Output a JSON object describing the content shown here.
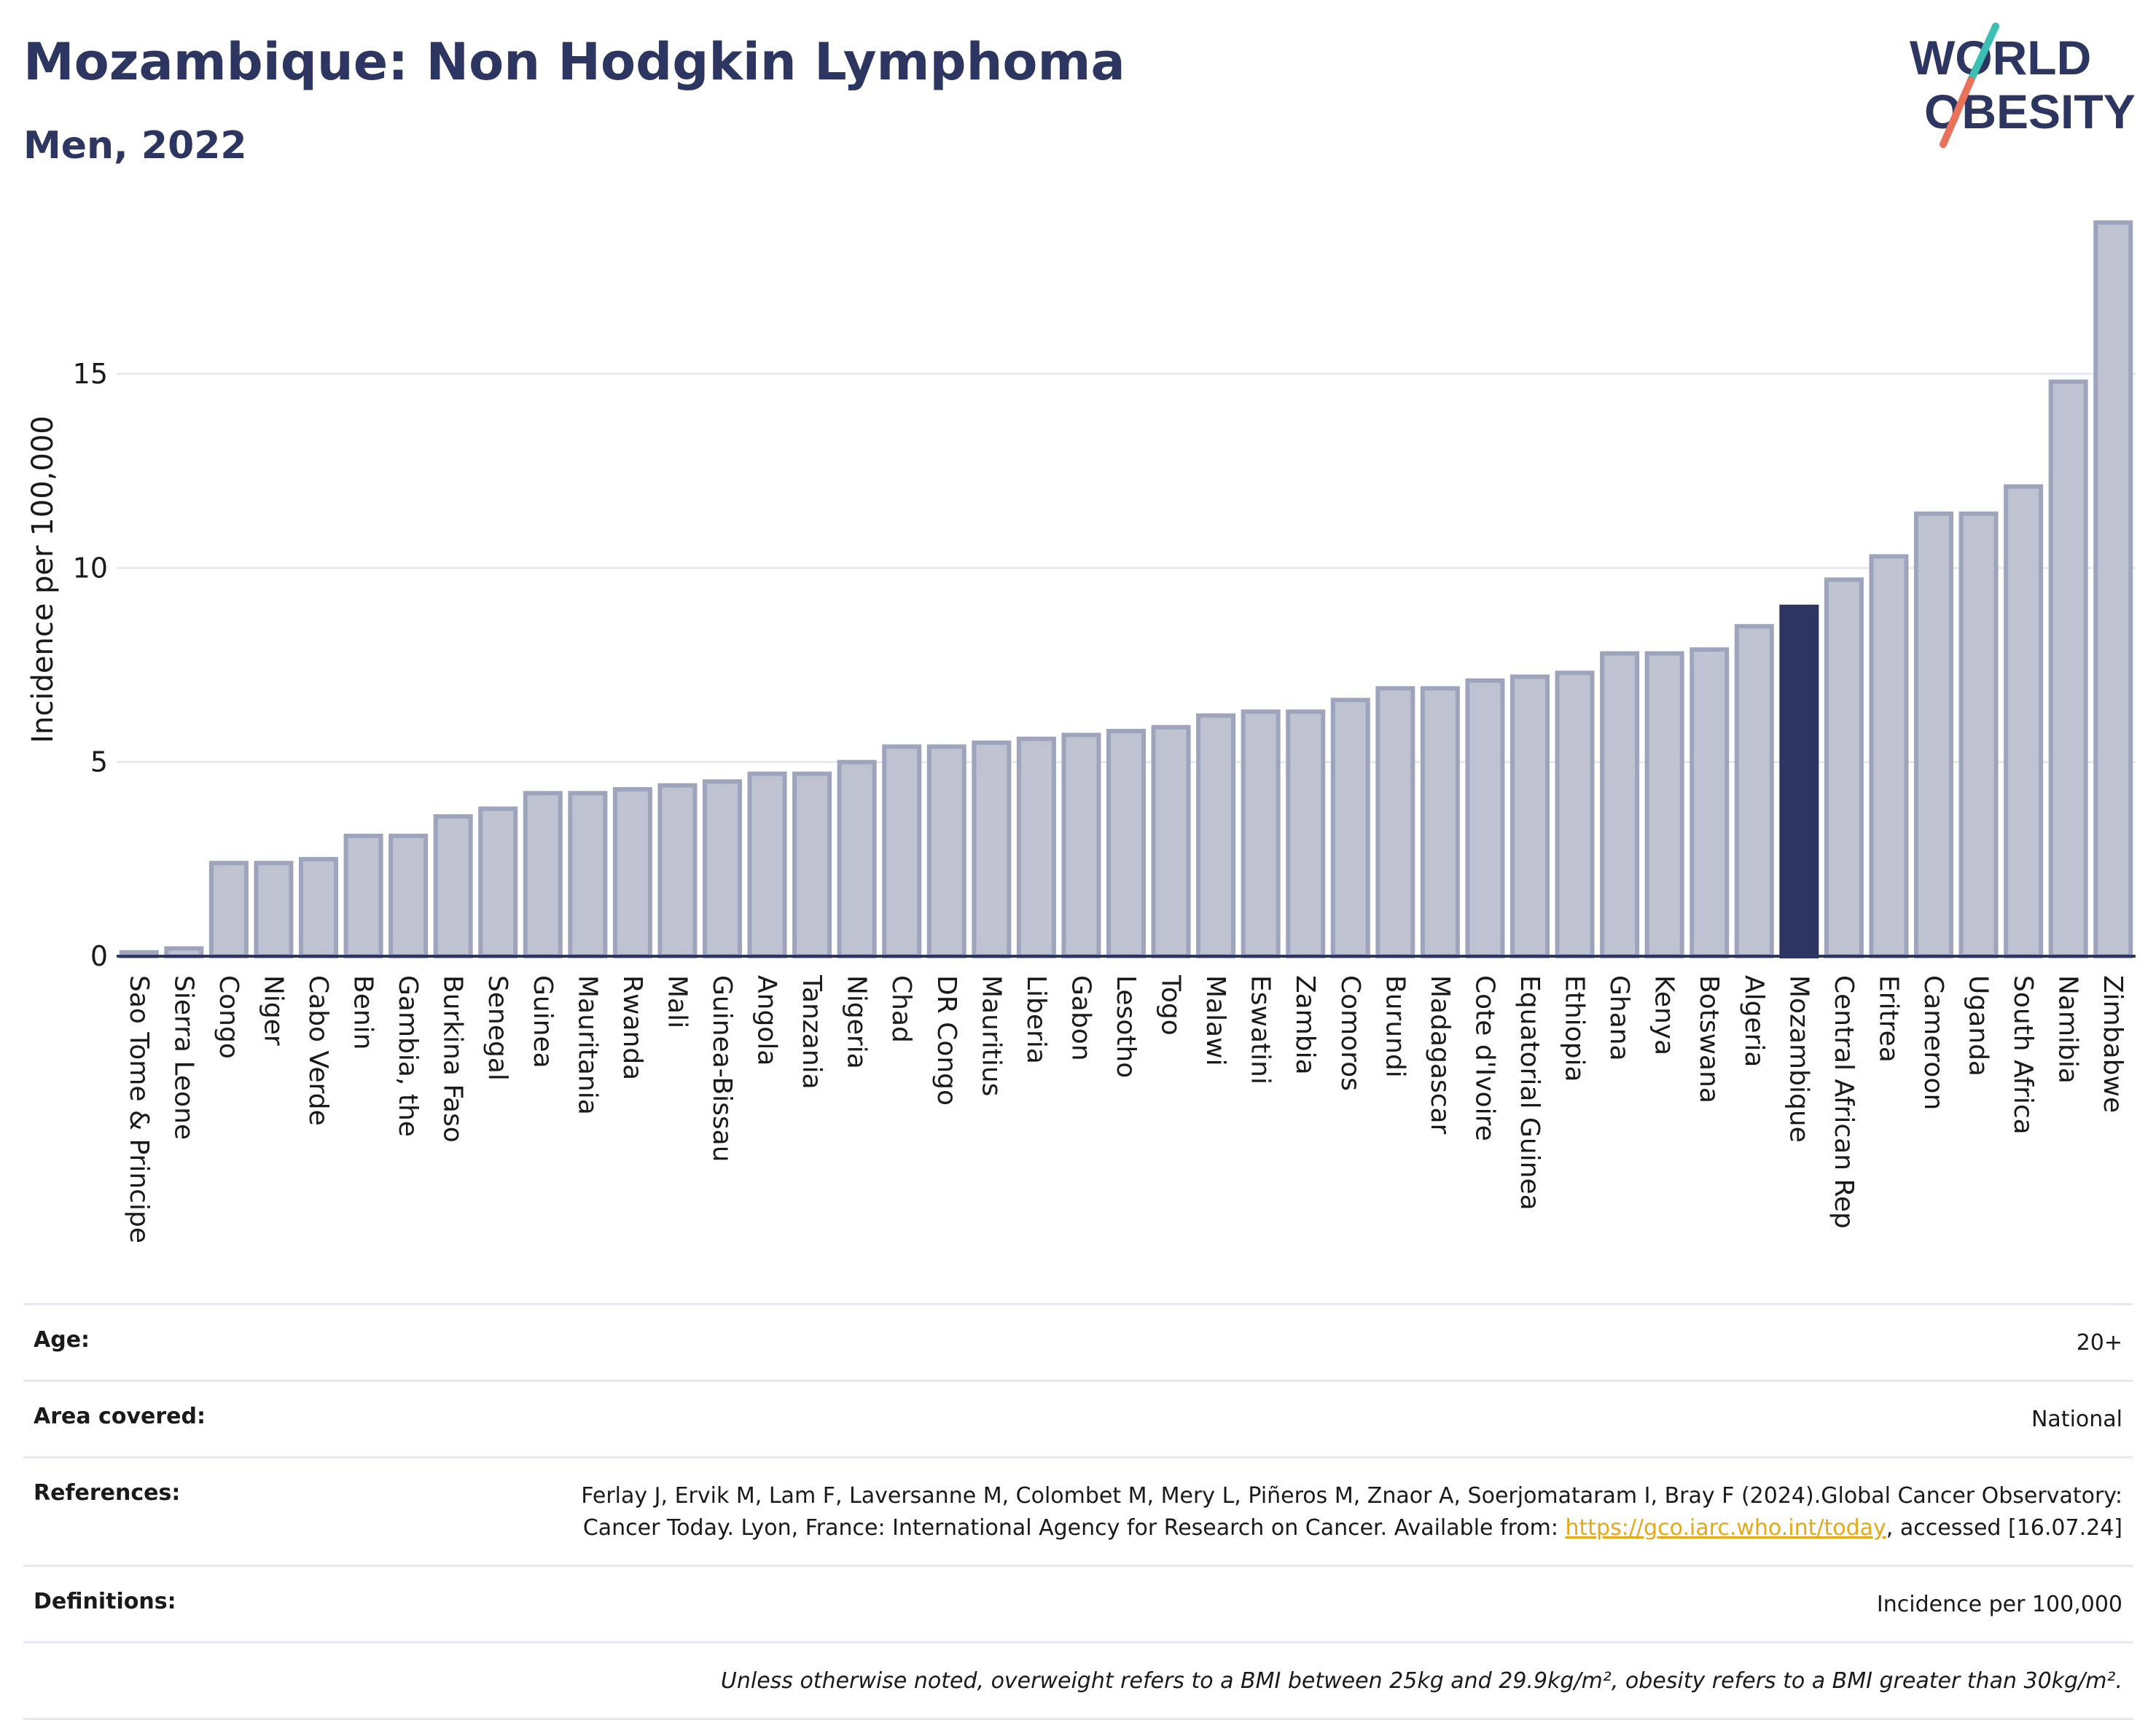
{
  "header": {
    "title": "Mozambique: Non Hodgkin Lymphoma",
    "subtitle": "Men, 2022"
  },
  "logo": {
    "line1": "WORLD",
    "line2": "OBESITY",
    "colors": {
      "text": "#2d3561",
      "slash_top": "#3cbfb3",
      "slash_bottom": "#e8735a"
    }
  },
  "colors": {
    "bar": "#bfc3d1",
    "bar_outline": "#9ea4bb",
    "highlight": "#2d3561",
    "grid": "#e6e9ef",
    "axis": "#2d3561",
    "title": "#2d3561",
    "link": "#e6a817"
  },
  "chart_data": {
    "type": "bar",
    "ylabel": "Incidence per 100,000",
    "ylim": [
      0,
      19
    ],
    "yticks": [
      0,
      5,
      10,
      15
    ],
    "grid": true,
    "highlight": "Mozambique",
    "categories": [
      "Sao Tome & Principe",
      "Sierra Leone",
      "Congo",
      "Niger",
      "Cabo Verde",
      "Benin",
      "Gambia, the",
      "Burkina Faso",
      "Senegal",
      "Guinea",
      "Mauritania",
      "Rwanda",
      "Mali",
      "Guinea-Bissau",
      "Angola",
      "Tanzania",
      "Nigeria",
      "Chad",
      "DR Congo",
      "Mauritius",
      "Liberia",
      "Gabon",
      "Lesotho",
      "Togo",
      "Malawi",
      "Eswatini",
      "Zambia",
      "Comoros",
      "Burundi",
      "Madagascar",
      "Cote d'Ivoire",
      "Equatorial Guinea",
      "Ethiopia",
      "Ghana",
      "Kenya",
      "Botswana",
      "Algeria",
      "Mozambique",
      "Central African Rep",
      "Eritrea",
      "Cameroon",
      "Uganda",
      "South Africa",
      "Namibia",
      "Zimbabwe"
    ],
    "values": [
      0.1,
      0.2,
      2.4,
      2.4,
      2.5,
      3.1,
      3.1,
      3.6,
      3.8,
      4.2,
      4.2,
      4.3,
      4.4,
      4.5,
      4.7,
      4.7,
      5.0,
      5.4,
      5.4,
      5.5,
      5.6,
      5.7,
      5.8,
      5.9,
      6.2,
      6.3,
      6.3,
      6.6,
      6.9,
      6.9,
      7.1,
      7.2,
      7.3,
      7.8,
      7.8,
      7.9,
      8.5,
      9.0,
      9.7,
      10.3,
      11.4,
      11.4,
      12.1,
      14.8,
      18.9
    ]
  },
  "info": {
    "age_label": "Age:",
    "age_value": "20+",
    "area_label": "Area covered:",
    "area_value": "National",
    "references_label": "References:",
    "references_text": "Ferlay J, Ervik M, Lam F, Laversanne M, Colombet M, Mery L, Piñeros M, Znaor A, Soerjomataram I, Bray F (2024).Global Cancer Observatory: Cancer Today. Lyon, France: International Agency for Research on Cancer. Available from:",
    "references_link": "https://gco.iarc.who.int/today",
    "references_suffix": ", accessed [16.07.24]",
    "definitions_label": "Definitions:",
    "definitions_value": "Incidence per 100,000",
    "note": "Unless otherwise noted, overweight refers to a BMI between 25kg and 29.9kg/m², obesity refers to a BMI greater than 30kg/m²."
  }
}
